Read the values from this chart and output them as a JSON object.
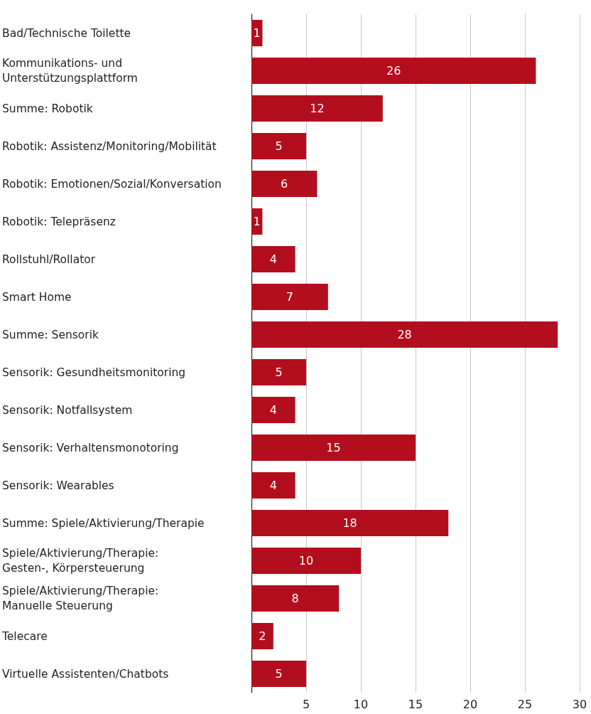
{
  "chart_data": {
    "type": "bar",
    "orientation": "horizontal",
    "categories": [
      "Bad/Technische Toilette",
      "Kommunikations- und\nUnterstützungsplattform",
      "Summe: Robotik",
      "Robotik: Assistenz/Monitoring/Mobilität",
      "Robotik: Emotionen/Sozial/Konversation",
      "Robotik: Telepräsenz",
      "Rollstuhl/Rollator",
      "Smart Home",
      "Summe: Sensorik",
      "Sensorik: Gesundheitsmonitoring",
      "Sensorik: Notfallsystem",
      "Sensorik: Verhaltensmonotoring",
      "Sensorik: Wearables",
      "Summe: Spiele/Aktivierung/Therapie",
      "Spiele/Aktivierung/Therapie:\nGesten-, Körpersteuerung",
      "Spiele/Aktivierung/Therapie:\nManuelle Steuerung",
      "Telecare",
      "Virtuelle Assistenten/Chatbots"
    ],
    "values": [
      1,
      26,
      12,
      5,
      6,
      1,
      4,
      7,
      28,
      5,
      4,
      15,
      4,
      18,
      10,
      8,
      2,
      5
    ],
    "data_labels": true,
    "color": "#b20e1e",
    "xlim": [
      0,
      30
    ],
    "xticks": [
      5,
      10,
      15,
      20,
      25,
      30
    ],
    "grid": "x"
  }
}
